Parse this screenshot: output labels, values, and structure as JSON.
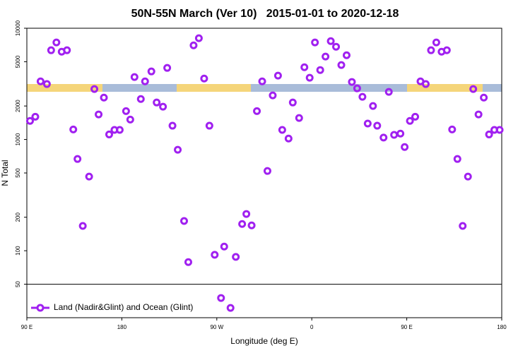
{
  "chart_data": {
    "type": "scatter",
    "title": "50N-55N March (Ver 10)   2015-01-01 to 2020-12-18",
    "x_label": "Longitude (deg E)",
    "y_label": "N Total",
    "log_y": true,
    "legend": "bottom-left",
    "hline": 50,
    "xlim": [
      90,
      540
    ],
    "ylim": [
      25,
      10000
    ],
    "xticks": [
      {
        "value": 90,
        "label": "90 E"
      },
      {
        "value": 180,
        "label": "180"
      },
      {
        "value": 270,
        "label": "90 W"
      },
      {
        "value": 360,
        "label": "0"
      },
      {
        "value": 450,
        "label": "90 E"
      },
      {
        "value": 540,
        "label": "180"
      }
    ],
    "yticks": [
      50,
      100,
      200,
      500,
      1000,
      2000,
      5000,
      10000
    ],
    "x": [
      93,
      98,
      103,
      109,
      113,
      118,
      123,
      128,
      134,
      138,
      143,
      149,
      154,
      158,
      163,
      168,
      173,
      178,
      184,
      188,
      192,
      198,
      202,
      208,
      213,
      219,
      223,
      228,
      233,
      239,
      243,
      248,
      253,
      258,
      263,
      268,
      274,
      277,
      283,
      288,
      294,
      298,
      303,
      308,
      313,
      318,
      323,
      328,
      332,
      338,
      342,
      348,
      353,
      358,
      363,
      368,
      373,
      378,
      383,
      388,
      393,
      398,
      403,
      408,
      413,
      418,
      422,
      428,
      433,
      438,
      444,
      448,
      453,
      458,
      463,
      468,
      473,
      478,
      483,
      488,
      493,
      498,
      503,
      508,
      513,
      518,
      523,
      528,
      533,
      538
    ],
    "series": [
      {
        "name": "Land (Nadir&Glint) and Ocean (Glint)",
        "color": "#a020f0",
        "values": [
          1470,
          1600,
          3330,
          3150,
          6340,
          7450,
          6150,
          6340,
          1230,
          668,
          167,
          464,
          2840,
          1680,
          2380,
          1110,
          1220,
          1220,
          1800,
          1510,
          3640,
          2310,
          3330,
          4090,
          2150,
          1970,
          4400,
          1330,
          808,
          185,
          79,
          7020,
          8130,
          3530,
          1330,
          92,
          37.6,
          109,
          30.6,
          88,
          174,
          214,
          169,
          1800,
          3330,
          521,
          2490,
          3750,
          1220,
          1020,
          2150,
          1560,
          4460,
          3590,
          7450,
          4210,
          5560,
          7660,
          6820,
          4670,
          5720,
          3290,
          2880,
          2420,
          1390,
          2000,
          1330,
          1040,
          2680,
          1100,
          1130,
          856,
          1470,
          1600,
          3330,
          3150,
          6340,
          7450,
          6150,
          6340,
          1230,
          668,
          167,
          464,
          2840,
          1680,
          2380,
          1110,
          1220,
          1220
        ]
      }
    ]
  }
}
